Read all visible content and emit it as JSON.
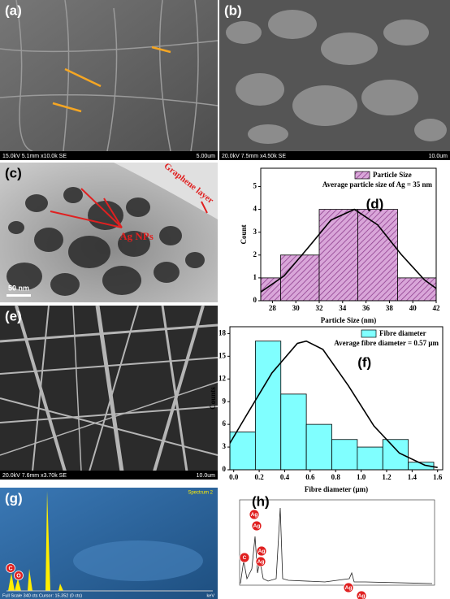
{
  "sem": [
    {
      "label": "(a)",
      "info": "15.0kV 5.1mm x10.0k SE",
      "scale": "5.00um"
    },
    {
      "label": "(b)",
      "info": "20.0kV 7.5mm x4.50k SE",
      "scale": "10.0um"
    },
    {
      "label": "(e)",
      "info": "20.0kV 7.6mm x3.70k SE",
      "scale": "10.0um"
    }
  ],
  "tem": {
    "label": "(c)",
    "annotations": [
      "Graphene layer",
      "Ag NPs"
    ],
    "scale": "50 nm"
  },
  "chart_data": [
    {
      "type": "histogram",
      "label": "(d)",
      "legend": "Particle Size",
      "annotation": "Average particle size of Ag = 35 nm",
      "xlabel": "Particle Size (nm)",
      "ylabel": "Count",
      "color": "#d9a6d9",
      "hatch": true,
      "bins": [
        25.3,
        28.7,
        32,
        35.3,
        38.7,
        42
      ],
      "values": [
        1,
        2,
        4,
        4,
        1
      ],
      "curve": {
        "x": [
          27,
          29,
          31,
          33,
          35,
          37,
          39,
          41,
          42
        ],
        "y": [
          0.38,
          1.09,
          2.29,
          3.53,
          4,
          3.32,
          2.03,
          0.91,
          0.54
        ]
      },
      "xlim": [
        27,
        42
      ],
      "ylim": [
        0,
        5.8
      ],
      "xticks": [
        28,
        30,
        32,
        34,
        36,
        38,
        40,
        42
      ],
      "yticks": [
        0,
        1,
        2,
        3,
        4,
        5
      ]
    },
    {
      "type": "histogram",
      "label": "(f)",
      "legend": "Fibre diameter",
      "annotation": "Average fibre diameter = 0.57 μm",
      "xlabel": "Fibre diameter (μm)",
      "ylabel": "Counts",
      "color": "#80ffff",
      "hatch": false,
      "bins": [
        -0.03,
        0.17,
        0.37,
        0.57,
        0.77,
        0.97,
        1.17,
        1.37,
        1.57
      ],
      "values": [
        5,
        17,
        10,
        6,
        4,
        3,
        4,
        1
      ],
      "curve": {
        "x": [
          -0.03,
          0.1,
          0.3,
          0.5,
          0.57,
          0.7,
          0.9,
          1.1,
          1.3,
          1.5,
          1.6
        ],
        "y": [
          3.5,
          7.2,
          12.8,
          16.7,
          17,
          15.9,
          11.1,
          5.8,
          2.2,
          0.6,
          0.3
        ]
      },
      "xlim": [
        -0.03,
        1.64
      ],
      "ylim": [
        0,
        18.9
      ],
      "xticks": [
        {
          "value": 0,
          "label": "0.0"
        },
        0.2,
        0.4,
        0.6,
        0.8,
        {
          "value": 1,
          "label": "1.0"
        },
        1.2,
        1.4,
        1.6
      ],
      "yticks": [
        0,
        3,
        6,
        9,
        12,
        15,
        18
      ]
    }
  ],
  "eds": [
    {
      "label": "(g)",
      "spectrum": "Spectrum 2",
      "peaks": [
        "C",
        "O"
      ],
      "footer": "Full Scale 340 cts Cursor: 15.352 (0 cts)",
      "unit": "keV"
    },
    {
      "label": "(h)",
      "peaks": [
        "Ag",
        "Ag",
        "C",
        "Ag",
        "Ag",
        "Ag",
        "Ag"
      ]
    }
  ]
}
